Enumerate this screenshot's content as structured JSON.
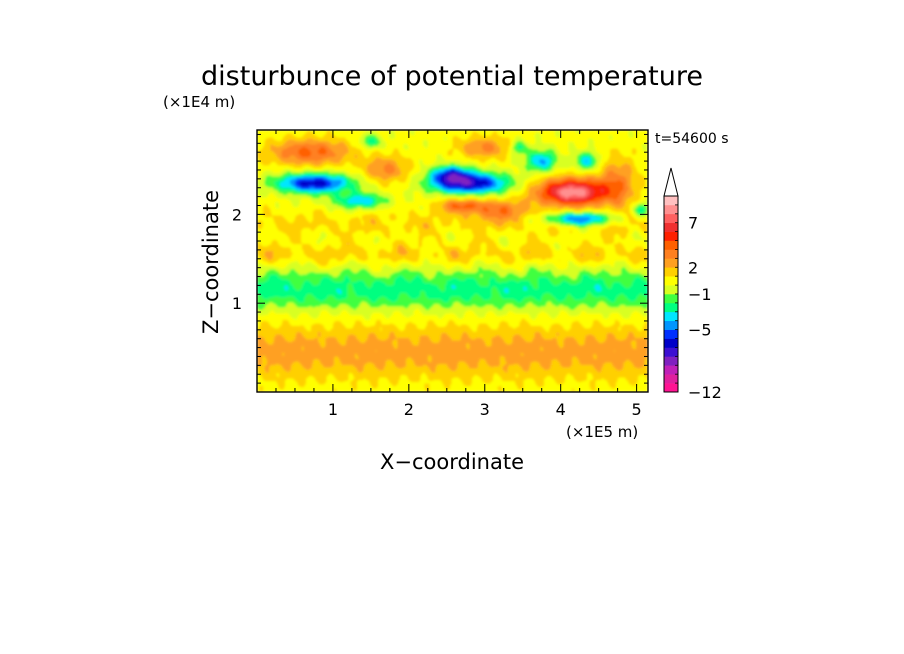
{
  "chart_data": {
    "type": "heatmap",
    "title": "disturbunce of potential temperature",
    "time_label": "t=54600 s",
    "xlabel": "X−coordinate",
    "ylabel": "Z−coordinate",
    "x_unit": "(×1E5 m)",
    "y_unit": "(×1E4 m)",
    "xlim": [
      0,
      5.15
    ],
    "ylim": [
      0,
      2.95
    ],
    "x_ticks": [
      1,
      2,
      3,
      4,
      5
    ],
    "y_ticks": [
      1,
      2
    ],
    "x_tick_labels": [
      "1",
      "2",
      "3",
      "4",
      "5"
    ],
    "y_tick_labels": [
      "1",
      "2"
    ],
    "colorbar": {
      "levels": [
        -12,
        -11,
        -10,
        -9,
        -8,
        -7,
        -6,
        -5,
        -4,
        -3,
        -2,
        -1,
        0,
        1,
        2,
        3,
        4,
        5,
        6,
        7,
        8,
        9
      ],
      "colors": [
        "#ff1493",
        "#e0209e",
        "#c020b8",
        "#8020c0",
        "#3c0fd2",
        "#0000c8",
        "#0030ff",
        "#0096ff",
        "#00e6ff",
        "#00ff80",
        "#40ff40",
        "#d8ff20",
        "#ffff00",
        "#ffd000",
        "#ffa020",
        "#ff8020",
        "#ff6000",
        "#ff2000",
        "#f03030",
        "#ff6060",
        "#ff9090",
        "#ffc0c0"
      ],
      "tick_values": [
        -12,
        -5,
        -1,
        2,
        7
      ],
      "tick_labels": [
        "−12",
        "−5",
        "−1",
        "2",
        "7"
      ]
    }
  }
}
